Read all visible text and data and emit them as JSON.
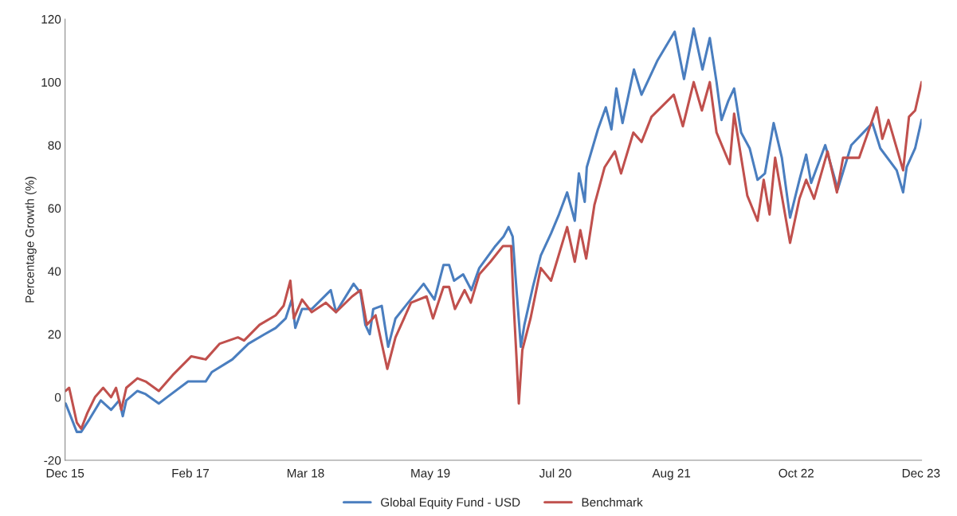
{
  "chart_data": {
    "type": "line",
    "ylabel": "Percentage Growth (%)",
    "xlim": [
      "2015-12-01",
      "2023-12-03"
    ],
    "ylim": [
      -20,
      120
    ],
    "yticks": [
      -20,
      0,
      20,
      40,
      60,
      80,
      100,
      120
    ],
    "xticks": [
      {
        "value": "2015-12-01",
        "label": "Dec 15"
      },
      {
        "value": "2017-02-01",
        "label": "Feb 17"
      },
      {
        "value": "2018-03-01",
        "label": "Mar 18"
      },
      {
        "value": "2019-05-01",
        "label": "May 19"
      },
      {
        "value": "2020-07-01",
        "label": "Jul 20"
      },
      {
        "value": "2021-08-01",
        "label": "Aug 21"
      },
      {
        "value": "2022-10-01",
        "label": "Oct 22"
      },
      {
        "value": "2023-12-01",
        "label": "Dec 23"
      }
    ],
    "grid": false,
    "legend": "bottom",
    "marker": "none",
    "line_style": "solid",
    "series": [
      {
        "name": "Global Equity Fund - USD",
        "color": "#4a7ebf",
        "x": [
          "2015-12-03",
          "2016-01-10",
          "2016-01-25",
          "2016-02-22",
          "2016-04-01",
          "2016-05-06",
          "2016-06-03",
          "2016-06-15",
          "2016-06-27",
          "2016-08-04",
          "2016-09-01",
          "2016-10-16",
          "2016-11-13",
          "2017-01-24",
          "2017-03-25",
          "2017-04-15",
          "2017-06-24",
          "2017-08-18",
          "2017-10-12",
          "2017-11-19",
          "2017-12-23",
          "2018-01-13",
          "2018-01-25",
          "2018-02-17",
          "2018-03-22",
          "2018-05-26",
          "2018-06-13",
          "2018-08-12",
          "2018-09-05",
          "2018-09-21",
          "2018-10-06",
          "2018-10-18",
          "2018-11-16",
          "2018-12-08",
          "2019-01-02",
          "2019-02-14",
          "2019-04-08",
          "2019-05-15",
          "2019-06-15",
          "2019-07-04",
          "2019-07-21",
          "2019-08-21",
          "2019-09-18",
          "2019-10-15",
          "2019-12-09",
          "2020-01-06",
          "2020-01-23",
          "2020-02-06",
          "2020-02-16",
          "2020-03-05",
          "2020-03-17",
          "2020-04-15",
          "2020-05-12",
          "2020-06-16",
          "2020-07-13",
          "2020-08-10",
          "2020-09-05",
          "2020-09-19",
          "2020-10-09",
          "2020-10-16",
          "2020-11-23",
          "2020-12-20",
          "2021-01-08",
          "2021-01-25",
          "2021-02-15",
          "2021-03-26",
          "2021-04-21",
          "2021-06-15",
          "2021-08-12",
          "2021-09-13",
          "2021-10-16",
          "2021-11-15",
          "2021-12-10",
          "2022-01-02",
          "2022-01-19",
          "2022-02-11",
          "2022-03-03",
          "2022-03-27",
          "2022-04-25",
          "2022-05-22",
          "2022-06-16",
          "2022-07-16",
          "2022-08-13",
          "2022-09-10",
          "2022-10-12",
          "2022-11-04",
          "2022-11-21",
          "2023-01-08",
          "2023-02-20",
          "2023-04-07",
          "2023-06-18",
          "2023-07-15",
          "2023-09-09",
          "2023-10-01",
          "2023-10-13",
          "2023-11-11",
          "2023-12-03"
        ],
        "values": [
          -2,
          -11,
          -11,
          -7,
          -1,
          -4,
          -1,
          -6,
          -1,
          2,
          1,
          -2,
          0,
          5,
          5,
          8,
          12,
          17,
          20,
          22,
          25,
          31,
          22,
          28,
          28,
          34,
          27,
          36,
          33,
          23,
          20,
          28,
          29,
          16,
          25,
          30,
          36,
          31,
          42,
          42,
          37,
          39,
          34,
          41,
          48,
          51,
          54,
          51,
          38,
          16,
          23,
          35,
          45,
          52,
          58,
          65,
          56,
          71,
          62,
          73,
          85,
          92,
          85,
          98,
          87,
          104,
          96,
          107,
          116,
          101,
          117,
          104,
          114,
          100,
          88,
          94,
          98,
          84,
          79,
          69,
          71,
          87,
          76,
          57,
          69,
          77,
          68,
          80,
          66,
          80,
          87,
          79,
          72,
          65,
          73,
          79,
          88
        ]
      },
      {
        "name": "Benchmark",
        "color": "#c0504d",
        "x": [
          "2015-12-03",
          "2015-12-15",
          "2016-01-10",
          "2016-01-25",
          "2016-02-15",
          "2016-03-12",
          "2016-04-09",
          "2016-05-06",
          "2016-05-23",
          "2016-06-10",
          "2016-06-27",
          "2016-08-04",
          "2016-09-01",
          "2016-10-16",
          "2016-12-02",
          "2017-02-04",
          "2017-03-25",
          "2017-05-12",
          "2017-07-13",
          "2017-08-03",
          "2017-09-25",
          "2017-11-19",
          "2017-12-16",
          "2018-01-08",
          "2018-01-20",
          "2018-02-17",
          "2018-03-22",
          "2018-05-09",
          "2018-06-13",
          "2018-08-07",
          "2018-09-05",
          "2018-09-26",
          "2018-10-26",
          "2018-12-05",
          "2019-01-02",
          "2019-02-24",
          "2019-04-18",
          "2019-05-10",
          "2019-06-15",
          "2019-07-04",
          "2019-07-24",
          "2019-08-26",
          "2019-09-16",
          "2019-10-15",
          "2019-11-22",
          "2020-01-04",
          "2020-02-01",
          "2020-02-08",
          "2020-02-20",
          "2020-02-27",
          "2020-03-10",
          "2020-04-07",
          "2020-05-12",
          "2020-06-16",
          "2020-08-10",
          "2020-09-05",
          "2020-09-24",
          "2020-10-14",
          "2020-11-11",
          "2020-12-16",
          "2021-01-20",
          "2021-02-10",
          "2021-03-24",
          "2021-04-21",
          "2021-05-25",
          "2021-08-09",
          "2021-09-09",
          "2021-10-16",
          "2021-11-13",
          "2021-12-10",
          "2022-01-02",
          "2022-02-16",
          "2022-03-03",
          "2022-04-17",
          "2022-05-22",
          "2022-06-12",
          "2022-07-02",
          "2022-07-21",
          "2022-09-10",
          "2022-10-12",
          "2022-11-04",
          "2022-12-01",
          "2023-01-16",
          "2023-02-17",
          "2023-03-10",
          "2023-05-04",
          "2023-07-03",
          "2023-07-22",
          "2023-08-12",
          "2023-10-01",
          "2023-10-21",
          "2023-11-11",
          "2023-12-03"
        ],
        "values": [
          2,
          3,
          -8,
          -10,
          -5,
          0,
          3,
          0,
          3,
          -4,
          3,
          6,
          5,
          2,
          7,
          13,
          12,
          17,
          19,
          18,
          23,
          26,
          29,
          37,
          25,
          31,
          27,
          30,
          27,
          32,
          34,
          23,
          26,
          9,
          19,
          30,
          32,
          25,
          35,
          35,
          28,
          34,
          30,
          39,
          43,
          48,
          48,
          32,
          11,
          -2,
          15,
          25,
          41,
          37,
          54,
          43,
          53,
          44,
          61,
          73,
          78,
          71,
          84,
          81,
          89,
          96,
          86,
          100,
          91,
          100,
          84,
          74,
          90,
          64,
          56,
          69,
          58,
          76,
          49,
          63,
          69,
          63,
          78,
          65,
          76,
          76,
          92,
          82,
          88,
          72,
          89,
          91,
          100
        ]
      }
    ]
  }
}
